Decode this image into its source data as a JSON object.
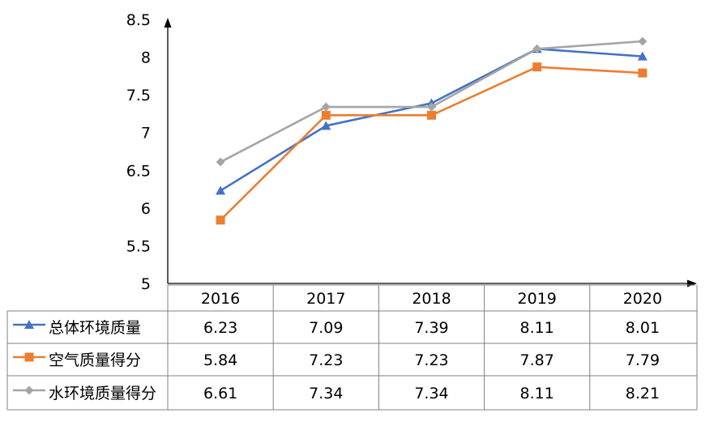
{
  "chart_data": {
    "type": "line",
    "categories": [
      "2016",
      "2017",
      "2018",
      "2019",
      "2020"
    ],
    "yticks": [
      "5",
      "5.5",
      "6",
      "6.5",
      "7",
      "7.5",
      "8",
      "8.5"
    ],
    "ylim": [
      5,
      8.5
    ],
    "series": [
      {
        "name": "总体环境质量",
        "values": [
          6.23,
          7.09,
          7.39,
          8.11,
          8.01
        ],
        "labels": [
          "6.23",
          "7.09",
          "7.39",
          "8.11",
          "8.01"
        ],
        "color": "#4472C4",
        "marker": "triangle"
      },
      {
        "name": "空气质量得分",
        "values": [
          5.84,
          7.23,
          7.23,
          7.87,
          7.79
        ],
        "labels": [
          "5.84",
          "7.23",
          "7.23",
          "7.87",
          "7.79"
        ],
        "color": "#ED7D31",
        "marker": "square"
      },
      {
        "name": "水环境质量得分",
        "values": [
          6.61,
          7.34,
          7.34,
          8.11,
          8.21
        ],
        "labels": [
          "6.61",
          "7.34",
          "7.34",
          "8.11",
          "8.21"
        ],
        "color": "#A5A5A5",
        "marker": "diamond"
      }
    ]
  }
}
